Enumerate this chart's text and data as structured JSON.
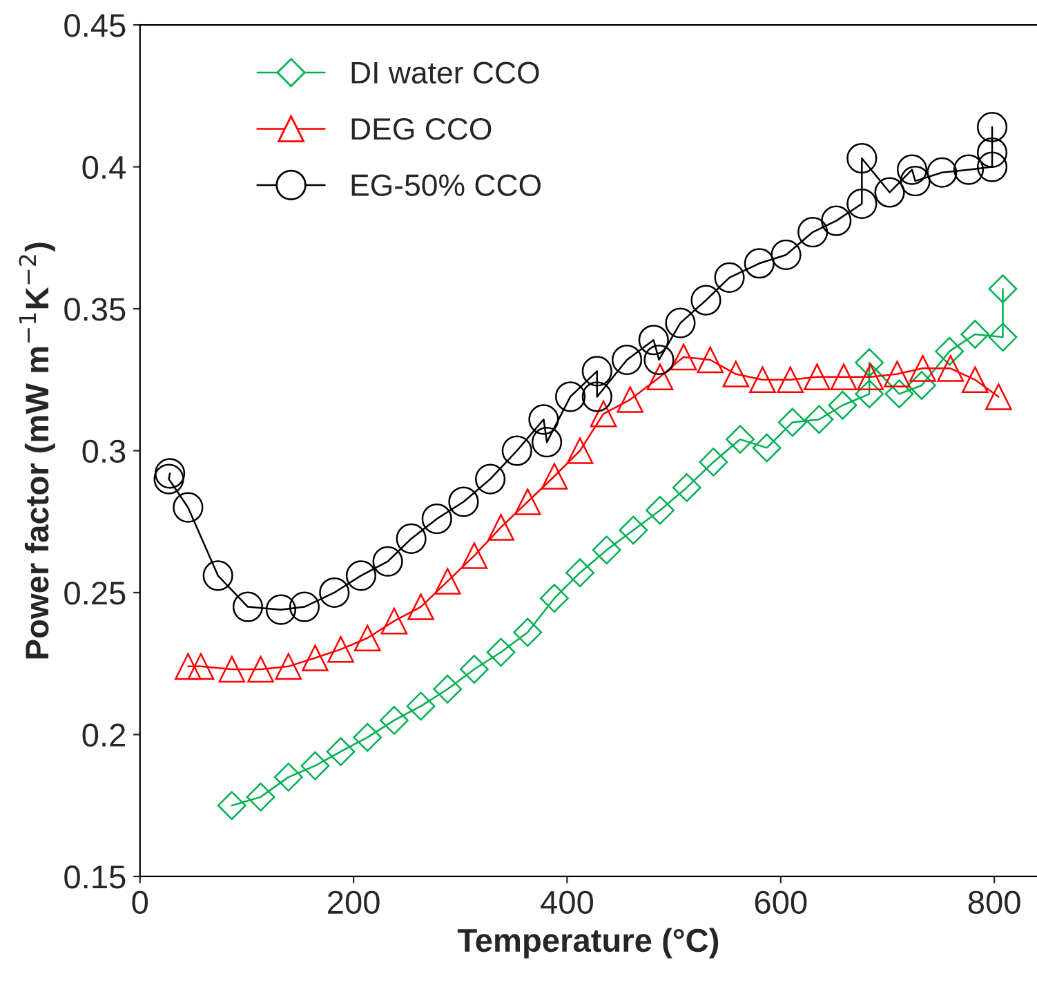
{
  "chart_data": {
    "type": "line",
    "xlabel": "Temperature (°C)",
    "ylabel": "Power factor (mW m$^{−1}$K$^{−2}$)",
    "xlim": [
      0,
      840
    ],
    "xticks": [
      0,
      200,
      400,
      600,
      800
    ],
    "ylim": [
      0.15,
      0.45
    ],
    "yticks": [
      0.15,
      0.2,
      0.25,
      0.3,
      0.35,
      0.4,
      0.45
    ],
    "grid": false,
    "legend": "top left",
    "line_style": "solid",
    "series": [
      {
        "name": "DI water CCO",
        "color": "#00b050",
        "marker": "diamond",
        "x": [
          86,
          113,
          139,
          164,
          188,
          213,
          238,
          263,
          288,
          313,
          338,
          363,
          388,
          412,
          437,
          462,
          487,
          512,
          537,
          562,
          587,
          611,
          636,
          658,
          683,
          683,
          711,
          732,
          758,
          782,
          808,
          808
        ],
        "values": [
          0.175,
          0.178,
          0.185,
          0.189,
          0.194,
          0.199,
          0.205,
          0.21,
          0.216,
          0.223,
          0.229,
          0.236,
          0.248,
          0.257,
          0.265,
          0.272,
          0.279,
          0.287,
          0.296,
          0.304,
          0.301,
          0.31,
          0.311,
          0.316,
          0.32,
          0.331,
          0.32,
          0.323,
          0.335,
          0.341,
          0.34,
          0.357
        ]
      },
      {
        "name": "DEG CCO",
        "color": "#ff0000",
        "marker": "triangle",
        "x": [
          45,
          57,
          86,
          113,
          139,
          164,
          188,
          213,
          238,
          263,
          288,
          313,
          338,
          363,
          388,
          412,
          434,
          459,
          487,
          509,
          534,
          558,
          583,
          609,
          634,
          659,
          684,
          709,
          733,
          759,
          782,
          804
        ],
        "values": [
          0.224,
          0.224,
          0.223,
          0.223,
          0.224,
          0.227,
          0.23,
          0.234,
          0.24,
          0.245,
          0.254,
          0.263,
          0.273,
          0.282,
          0.291,
          0.3,
          0.313,
          0.318,
          0.326,
          0.333,
          0.332,
          0.327,
          0.325,
          0.325,
          0.326,
          0.326,
          0.326,
          0.327,
          0.329,
          0.329,
          0.325,
          0.319
        ]
      },
      {
        "name": "EG-50% CCO",
        "color": "#000000",
        "marker": "circle",
        "x": [
          28,
          27,
          45,
          73,
          101,
          132,
          154,
          182,
          207,
          232,
          254,
          278,
          303,
          328,
          353,
          378,
          381,
          403,
          428,
          428,
          456,
          481,
          486,
          506,
          530,
          552,
          580,
          605,
          630,
          652,
          676,
          676,
          702,
          723,
          726,
          751,
          776,
          798,
          798,
          798
        ],
        "values": [
          0.292,
          0.29,
          0.28,
          0.256,
          0.245,
          0.244,
          0.245,
          0.25,
          0.256,
          0.261,
          0.269,
          0.276,
          0.282,
          0.29,
          0.3,
          0.311,
          0.303,
          0.319,
          0.328,
          0.319,
          0.332,
          0.339,
          0.332,
          0.345,
          0.353,
          0.361,
          0.366,
          0.369,
          0.377,
          0.381,
          0.387,
          0.403,
          0.391,
          0.399,
          0.395,
          0.398,
          0.399,
          0.4,
          0.405,
          0.414
        ]
      }
    ]
  }
}
